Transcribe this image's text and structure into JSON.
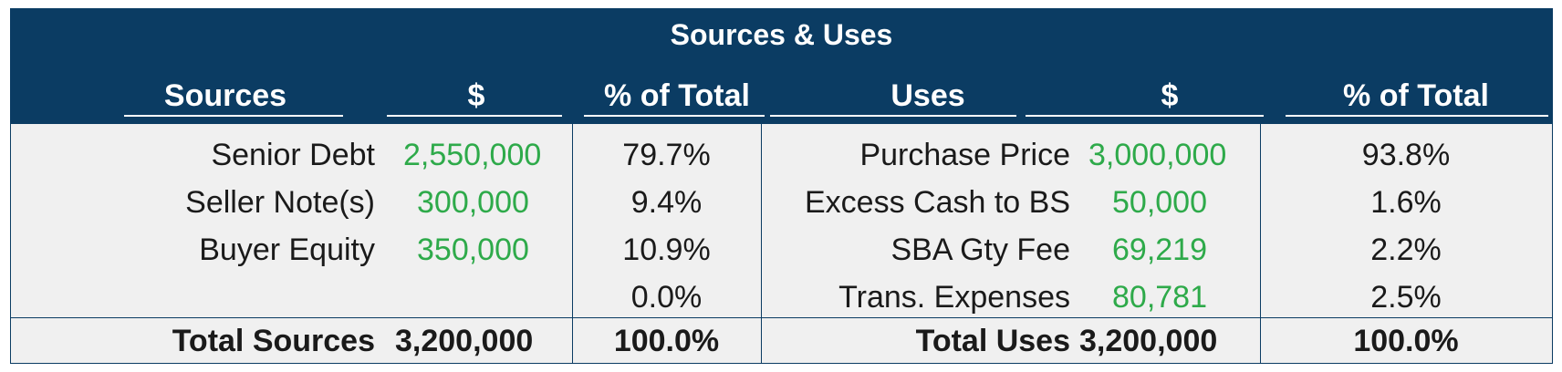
{
  "title": "Sources & Uses",
  "headers": {
    "sources": "Sources",
    "sources_amount": "$",
    "sources_pct": "% of Total",
    "uses": "Uses",
    "uses_amount": "$",
    "uses_pct": "% of Total"
  },
  "sources": [
    {
      "label": "Senior Debt",
      "amount": "2,550,000",
      "pct": "79.7%"
    },
    {
      "label": "Seller Note(s)",
      "amount": "300,000",
      "pct": "9.4%"
    },
    {
      "label": "Buyer Equity",
      "amount": "350,000",
      "pct": "10.9%"
    },
    {
      "label": "",
      "amount": "",
      "pct": "0.0%"
    }
  ],
  "uses": [
    {
      "label": "Purchase Price",
      "amount": "3,000,000",
      "pct": "93.8%"
    },
    {
      "label": "Excess Cash to BS",
      "amount": "50,000",
      "pct": "1.6%"
    },
    {
      "label": "SBA Gty Fee",
      "amount": "69,219",
      "pct": "2.2%"
    },
    {
      "label": "Trans. Expenses",
      "amount": "80,781",
      "pct": "2.5%"
    }
  ],
  "totals": {
    "sources_label": "Total Sources",
    "sources_amount": "3,200,000",
    "sources_pct": "100.0%",
    "uses_label": "Total Uses",
    "uses_amount": "3,200,000",
    "uses_pct": "100.0%"
  },
  "colors": {
    "header_bg": "#0b3c63",
    "body_bg": "#f0f0f0",
    "input_green": "#2eaa4a"
  }
}
